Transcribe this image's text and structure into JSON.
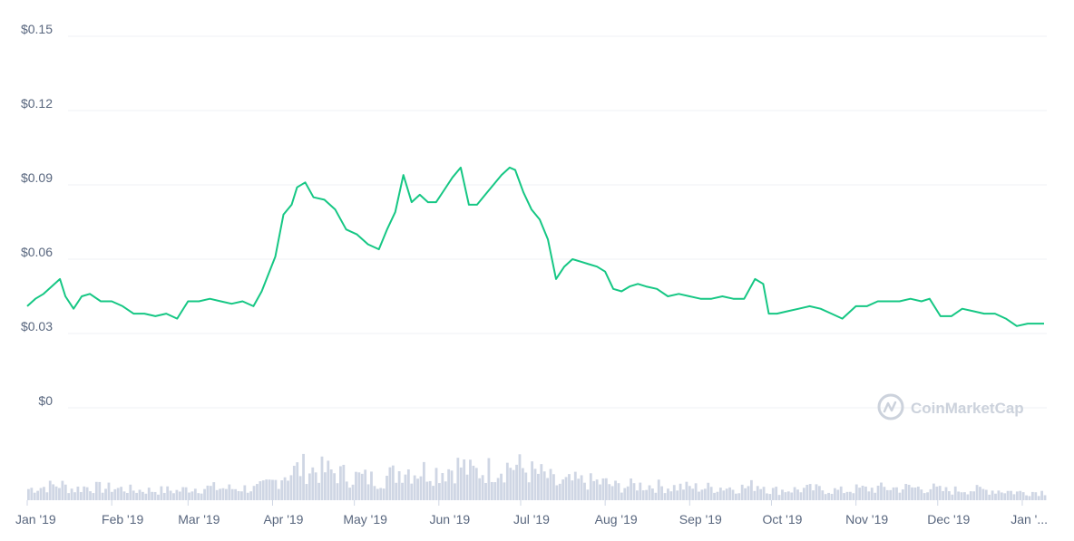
{
  "chart_data": {
    "type": "line",
    "title": "",
    "xlabel": "",
    "ylabel": "",
    "ylim": [
      0,
      0.15
    ],
    "y_ticks": [
      "$0",
      "$0.03",
      "$0.06",
      "$0.09",
      "$0.12",
      "$0.15"
    ],
    "y_tick_values": [
      0,
      0.03,
      0.06,
      0.09,
      0.12,
      0.15
    ],
    "x_ticks": [
      "Jan '19",
      "Feb '19",
      "Mar '19",
      "Apr '19",
      "May '19",
      "Jun '19",
      "Jul '19",
      "Aug '19",
      "Sep '19",
      "Oct '19",
      "Nov '19",
      "Dec '19",
      "Jan '..."
    ],
    "x_tick_dates": [
      "2019-01-01",
      "2019-02-01",
      "2019-03-01",
      "2019-04-01",
      "2019-05-01",
      "2019-06-01",
      "2019-07-01",
      "2019-08-01",
      "2019-09-01",
      "2019-10-01",
      "2019-11-01",
      "2019-12-01",
      "2020-01-01"
    ],
    "grid": true,
    "line_color": "#16c784",
    "volume_color": "#cfd6e4",
    "series": [
      {
        "values": [
          [
            "2019-01-01",
            0.041
          ],
          [
            "2019-01-04",
            0.044
          ],
          [
            "2019-01-07",
            0.046
          ],
          [
            "2019-01-10",
            0.049
          ],
          [
            "2019-01-13",
            0.052
          ],
          [
            "2019-01-15",
            0.045
          ],
          [
            "2019-01-18",
            0.04
          ],
          [
            "2019-01-21",
            0.045
          ],
          [
            "2019-01-24",
            0.046
          ],
          [
            "2019-01-28",
            0.043
          ],
          [
            "2019-02-01",
            0.043
          ],
          [
            "2019-02-05",
            0.041
          ],
          [
            "2019-02-09",
            0.038
          ],
          [
            "2019-02-13",
            0.038
          ],
          [
            "2019-02-17",
            0.037
          ],
          [
            "2019-02-21",
            0.038
          ],
          [
            "2019-02-25",
            0.036
          ],
          [
            "2019-03-01",
            0.043
          ],
          [
            "2019-03-05",
            0.043
          ],
          [
            "2019-03-09",
            0.044
          ],
          [
            "2019-03-13",
            0.043
          ],
          [
            "2019-03-17",
            0.042
          ],
          [
            "2019-03-21",
            0.043
          ],
          [
            "2019-03-25",
            0.041
          ],
          [
            "2019-03-28",
            0.047
          ],
          [
            "2019-04-02",
            0.061
          ],
          [
            "2019-04-05",
            0.078
          ],
          [
            "2019-04-08",
            0.082
          ],
          [
            "2019-04-10",
            0.089
          ],
          [
            "2019-04-13",
            0.091
          ],
          [
            "2019-04-16",
            0.085
          ],
          [
            "2019-04-20",
            0.084
          ],
          [
            "2019-04-24",
            0.08
          ],
          [
            "2019-04-28",
            0.072
          ],
          [
            "2019-05-02",
            0.07
          ],
          [
            "2019-05-06",
            0.066
          ],
          [
            "2019-05-10",
            0.064
          ],
          [
            "2019-05-13",
            0.072
          ],
          [
            "2019-05-16",
            0.079
          ],
          [
            "2019-05-19",
            0.094
          ],
          [
            "2019-05-22",
            0.083
          ],
          [
            "2019-05-25",
            0.086
          ],
          [
            "2019-05-28",
            0.083
          ],
          [
            "2019-05-31",
            0.083
          ],
          [
            "2019-06-03",
            0.088
          ],
          [
            "2019-06-06",
            0.093
          ],
          [
            "2019-06-09",
            0.097
          ],
          [
            "2019-06-12",
            0.082
          ],
          [
            "2019-06-15",
            0.082
          ],
          [
            "2019-06-18",
            0.086
          ],
          [
            "2019-06-21",
            0.09
          ],
          [
            "2019-06-24",
            0.094
          ],
          [
            "2019-06-27",
            0.097
          ],
          [
            "2019-06-29",
            0.096
          ],
          [
            "2019-07-02",
            0.087
          ],
          [
            "2019-07-05",
            0.08
          ],
          [
            "2019-07-08",
            0.076
          ],
          [
            "2019-07-11",
            0.068
          ],
          [
            "2019-07-14",
            0.052
          ],
          [
            "2019-07-17",
            0.057
          ],
          [
            "2019-07-20",
            0.06
          ],
          [
            "2019-07-23",
            0.059
          ],
          [
            "2019-07-26",
            0.058
          ],
          [
            "2019-07-29",
            0.057
          ],
          [
            "2019-08-01",
            0.055
          ],
          [
            "2019-08-04",
            0.048
          ],
          [
            "2019-08-07",
            0.047
          ],
          [
            "2019-08-10",
            0.049
          ],
          [
            "2019-08-13",
            0.05
          ],
          [
            "2019-08-16",
            0.049
          ],
          [
            "2019-08-20",
            0.048
          ],
          [
            "2019-08-24",
            0.045
          ],
          [
            "2019-08-28",
            0.046
          ],
          [
            "2019-09-01",
            0.045
          ],
          [
            "2019-09-05",
            0.044
          ],
          [
            "2019-09-09",
            0.044
          ],
          [
            "2019-09-13",
            0.045
          ],
          [
            "2019-09-17",
            0.044
          ],
          [
            "2019-09-21",
            0.044
          ],
          [
            "2019-09-25",
            0.052
          ],
          [
            "2019-09-28",
            0.05
          ],
          [
            "2019-09-30",
            0.038
          ],
          [
            "2019-10-03",
            0.038
          ],
          [
            "2019-10-07",
            0.039
          ],
          [
            "2019-10-11",
            0.04
          ],
          [
            "2019-10-15",
            0.041
          ],
          [
            "2019-10-19",
            0.04
          ],
          [
            "2019-10-23",
            0.038
          ],
          [
            "2019-10-27",
            0.036
          ],
          [
            "2019-11-01",
            0.041
          ],
          [
            "2019-11-05",
            0.041
          ],
          [
            "2019-11-09",
            0.043
          ],
          [
            "2019-11-13",
            0.043
          ],
          [
            "2019-11-17",
            0.043
          ],
          [
            "2019-11-21",
            0.044
          ],
          [
            "2019-11-25",
            0.043
          ],
          [
            "2019-11-28",
            0.044
          ],
          [
            "2019-12-02",
            0.037
          ],
          [
            "2019-12-06",
            0.037
          ],
          [
            "2019-12-10",
            0.04
          ],
          [
            "2019-12-14",
            0.039
          ],
          [
            "2019-12-18",
            0.038
          ],
          [
            "2019-12-22",
            0.038
          ],
          [
            "2019-12-26",
            0.036
          ],
          [
            "2019-12-30",
            0.033
          ],
          [
            "2020-01-03",
            0.034
          ],
          [
            "2020-01-06",
            0.034
          ],
          [
            "2020-01-09",
            0.034
          ]
        ]
      }
    ]
  },
  "watermark": {
    "text": "CoinMarketCap",
    "icon": "coinmarketcap-logo-icon"
  }
}
